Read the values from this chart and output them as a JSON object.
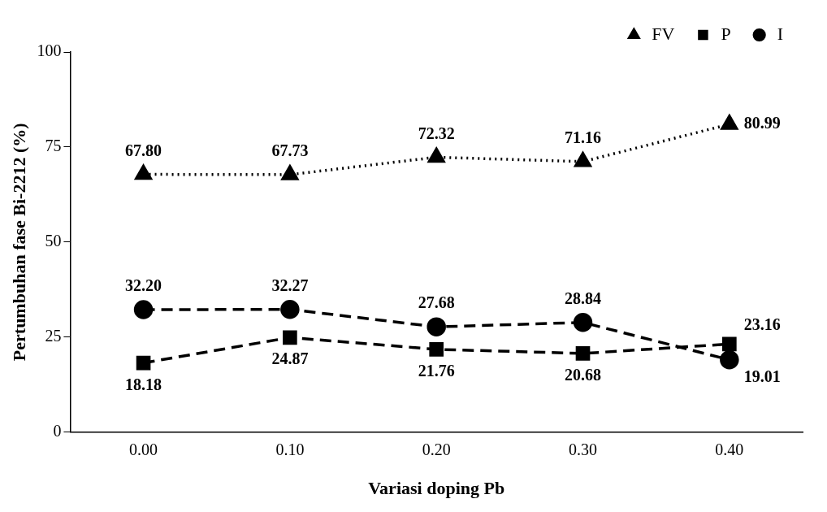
{
  "chart_data": {
    "type": "line",
    "xlabel": "Variasi doping Pb",
    "ylabel": "Pertumbuhan fase Bi-2212 (%)",
    "categories": [
      "0.00",
      "0.10",
      "0.20",
      "0.30",
      "0.40"
    ],
    "series": [
      {
        "name": "FV",
        "color": "#000000",
        "values": [
          67.8,
          67.73,
          72.32,
          71.16,
          80.99
        ],
        "value_labels": [
          "67.80",
          "67.73",
          "72.32",
          "71.16",
          "80.99"
        ],
        "marker": "triangle",
        "line_style": "dotted"
      },
      {
        "name": "P",
        "color": "#000000",
        "values": [
          18.18,
          24.87,
          21.76,
          20.68,
          23.16
        ],
        "value_labels": [
          "18.18",
          "24.87",
          "21.76",
          "20.68",
          "23.16"
        ],
        "marker": "square",
        "line_style": "dashed"
      },
      {
        "name": "I",
        "color": "#000000",
        "values": [
          32.2,
          32.27,
          27.68,
          28.84,
          19.01
        ],
        "value_labels": [
          "32.20",
          "32.27",
          "27.68",
          "28.84",
          "19.01"
        ],
        "marker": "circle",
        "line_style": "dashed"
      }
    ],
    "ylim": [
      0,
      100
    ],
    "yticks": [
      0,
      25,
      50,
      75,
      100
    ],
    "grid": false,
    "legend": "top right"
  }
}
